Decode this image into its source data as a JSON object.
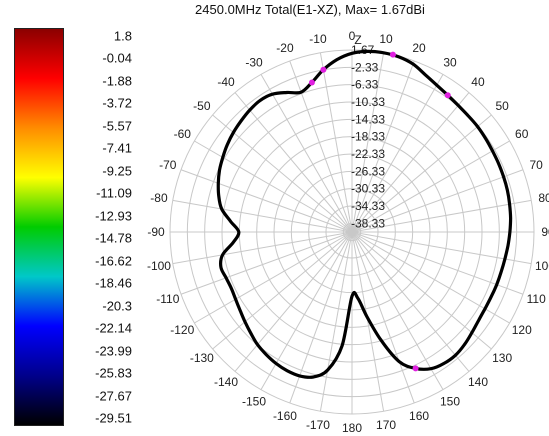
{
  "title": "2450.0MHz Total(E1-XZ), Max= 1.67dBi",
  "colorbar": {
    "labels": [
      "1.8",
      "-0.04",
      "-1.88",
      "-3.72",
      "-5.57",
      "-7.41",
      "-9.25",
      "-11.09",
      "-12.93",
      "-14.78",
      "-16.62",
      "-18.46",
      "-20.3",
      "-22.14",
      "-23.99",
      "-25.83",
      "-27.67",
      "-29.51"
    ],
    "colors": [
      "#8b0000",
      "#ff0000",
      "#ff8c00",
      "#ffff00",
      "#00cc00",
      "#00c8c8",
      "#0000ff",
      "#00008b",
      "#000000"
    ]
  },
  "chart_data": {
    "type": "polar-line",
    "title": "2450.0MHz Total(E1-XZ), Max= 1.67dBi",
    "unit": "dBi",
    "max_value": 1.67,
    "radial_ticks": [
      "1.67",
      "-2.33",
      "-6.33",
      "-10.33",
      "-14.33",
      "-18.33",
      "-22.33",
      "-26.33",
      "-30.33",
      "-34.33",
      "-38.33"
    ],
    "radial_range": [
      -40.33,
      1.67
    ],
    "angle_ticks": [
      "0",
      "10",
      "20",
      "30",
      "40",
      "50",
      "60",
      "70",
      "80",
      "90",
      "100",
      "110",
      "120",
      "130",
      "140",
      "150",
      "160",
      "170",
      "180",
      "-170",
      "-160",
      "-150",
      "-140",
      "-130",
      "-120",
      "-110",
      "-100",
      "-90",
      "-80",
      "-70",
      "-60",
      "-50",
      "-40",
      "-30",
      "-20",
      "-10"
    ],
    "axis_name": "Z",
    "series_color": "#000000",
    "marker_color": "#e020e0",
    "angles": [
      0,
      5,
      10,
      15,
      20,
      25,
      30,
      35,
      40,
      45,
      50,
      55,
      60,
      65,
      70,
      75,
      80,
      85,
      90,
      95,
      100,
      105,
      110,
      115,
      120,
      125,
      130,
      135,
      140,
      145,
      150,
      155,
      160,
      165,
      170,
      175,
      180,
      -175,
      -170,
      -165,
      -160,
      -155,
      -150,
      -145,
      -140,
      -135,
      -130,
      -125,
      -120,
      -115,
      -110,
      -105,
      -100,
      -95,
      -90,
      -85,
      -80,
      -75,
      -70,
      -65,
      -60,
      -55,
      -50,
      -45,
      -40,
      -35,
      -30,
      -25,
      -20,
      -15,
      -10,
      -5
    ],
    "values": [
      0.9,
      1.5,
      1.67,
      1.5,
      0.9,
      -0.3,
      -1.2,
      -1.8,
      -2.2,
      -2.4,
      -2.5,
      -2.7,
      -2.9,
      -3.0,
      -3.1,
      -3.2,
      -3.4,
      -3.6,
      -3.9,
      -4.2,
      -4.5,
      -4.7,
      -4.8,
      -4.9,
      -4.9,
      -4.7,
      -4.2,
      -3.6,
      -3.2,
      -3.3,
      -3.9,
      -5.6,
      -8.5,
      -14.5,
      -20.5,
      -25.0,
      -25.5,
      -14.0,
      -8.0,
      -5.7,
      -5.0,
      -5.0,
      -5.3,
      -5.8,
      -6.4,
      -7.3,
      -8.1,
      -8.8,
      -9.3,
      -9.6,
      -9.4,
      -9.0,
      -10.0,
      -12.8,
      -14.2,
      -12.2,
      -9.8,
      -8.5,
      -7.5,
      -6.6,
      -5.9,
      -5.2,
      -4.6,
      -4.1,
      -3.6,
      -3.3,
      -3.6,
      -4.8,
      -6.0,
      -4.6,
      -2.3,
      -0.4
    ],
    "markers": [
      {
        "angle": 13,
        "value": 1.67
      },
      {
        "angle": 35,
        "value": -1.8
      },
      {
        "angle": 155,
        "value": -5.6
      },
      {
        "angle": -10,
        "value": -2.3
      },
      {
        "angle": -15,
        "value": -4.6
      }
    ]
  }
}
